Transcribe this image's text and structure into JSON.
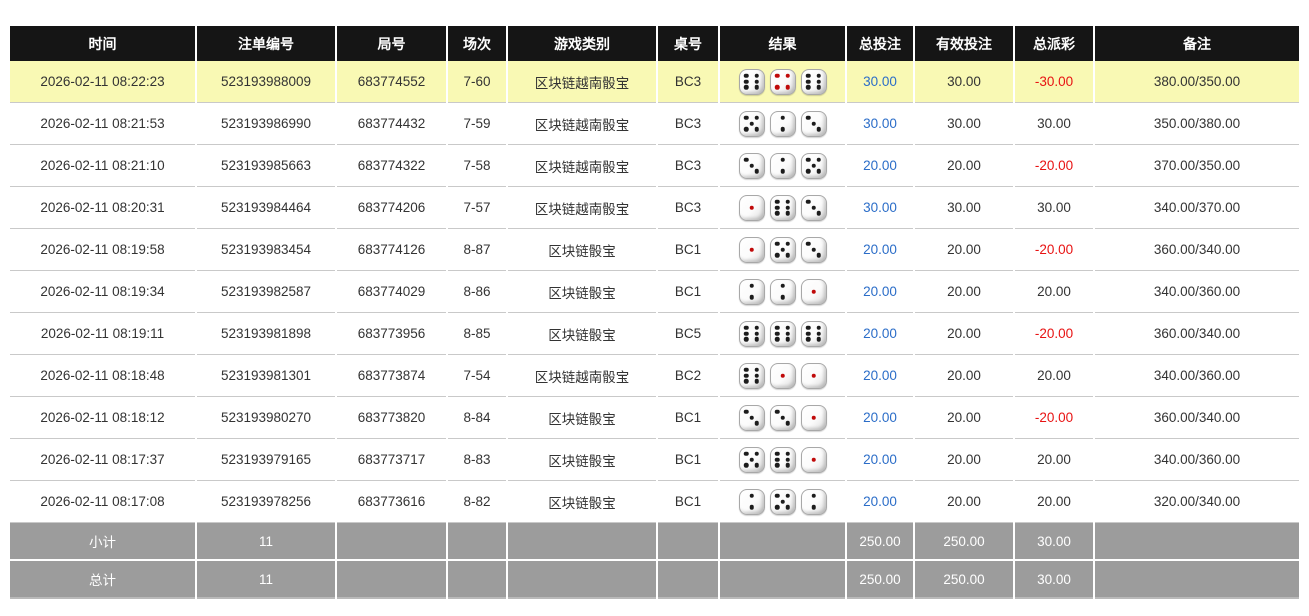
{
  "colors": {
    "header_bg": "#151515",
    "highlight_row_bg": "#f9f9b4",
    "total_bet_text": "#2b6dc8",
    "negative_payout_text": "#e81313",
    "footer_bg": "#9c9c9c",
    "die_pip_black": "#1c1c1c",
    "die_pip_red": "#c00a0a"
  },
  "table": {
    "columns": [
      "时间",
      "注单编号",
      "局号",
      "场次",
      "游戏类别",
      "桌号",
      "结果",
      "总投注",
      "有效投注",
      "总派彩",
      "备注"
    ],
    "rows": [
      {
        "highlighted": true,
        "time": "2026-02-11 08:22:23",
        "bet_id": "523193988009",
        "round_id": "683774552",
        "session": "7-60",
        "game": "区块链越南骰宝",
        "table_no": "BC3",
        "dice": [
          6,
          4,
          6
        ],
        "total_bet": "30.00",
        "valid_bet": "30.00",
        "payout": "-30.00",
        "remark": "380.00/350.00"
      },
      {
        "highlighted": false,
        "time": "2026-02-11 08:21:53",
        "bet_id": "523193986990",
        "round_id": "683774432",
        "session": "7-59",
        "game": "区块链越南骰宝",
        "table_no": "BC3",
        "dice": [
          5,
          2,
          3
        ],
        "total_bet": "30.00",
        "valid_bet": "30.00",
        "payout": "30.00",
        "remark": "350.00/380.00"
      },
      {
        "highlighted": false,
        "time": "2026-02-11 08:21:10",
        "bet_id": "523193985663",
        "round_id": "683774322",
        "session": "7-58",
        "game": "区块链越南骰宝",
        "table_no": "BC3",
        "dice": [
          3,
          2,
          5
        ],
        "total_bet": "20.00",
        "valid_bet": "20.00",
        "payout": "-20.00",
        "remark": "370.00/350.00"
      },
      {
        "highlighted": false,
        "time": "2026-02-11 08:20:31",
        "bet_id": "523193984464",
        "round_id": "683774206",
        "session": "7-57",
        "game": "区块链越南骰宝",
        "table_no": "BC3",
        "dice": [
          1,
          6,
          3
        ],
        "total_bet": "30.00",
        "valid_bet": "30.00",
        "payout": "30.00",
        "remark": "340.00/370.00"
      },
      {
        "highlighted": false,
        "time": "2026-02-11 08:19:58",
        "bet_id": "523193983454",
        "round_id": "683774126",
        "session": "8-87",
        "game": "区块链骰宝",
        "table_no": "BC1",
        "dice": [
          1,
          5,
          3
        ],
        "total_bet": "20.00",
        "valid_bet": "20.00",
        "payout": "-20.00",
        "remark": "360.00/340.00"
      },
      {
        "highlighted": false,
        "time": "2026-02-11 08:19:34",
        "bet_id": "523193982587",
        "round_id": "683774029",
        "session": "8-86",
        "game": "区块链骰宝",
        "table_no": "BC1",
        "dice": [
          2,
          2,
          1
        ],
        "total_bet": "20.00",
        "valid_bet": "20.00",
        "payout": "20.00",
        "remark": "340.00/360.00"
      },
      {
        "highlighted": false,
        "time": "2026-02-11 08:19:11",
        "bet_id": "523193981898",
        "round_id": "683773956",
        "session": "8-85",
        "game": "区块链骰宝",
        "table_no": "BC5",
        "dice": [
          6,
          6,
          6
        ],
        "total_bet": "20.00",
        "valid_bet": "20.00",
        "payout": "-20.00",
        "remark": "360.00/340.00"
      },
      {
        "highlighted": false,
        "time": "2026-02-11 08:18:48",
        "bet_id": "523193981301",
        "round_id": "683773874",
        "session": "7-54",
        "game": "区块链越南骰宝",
        "table_no": "BC2",
        "dice": [
          6,
          1,
          1
        ],
        "total_bet": "20.00",
        "valid_bet": "20.00",
        "payout": "20.00",
        "remark": "340.00/360.00"
      },
      {
        "highlighted": false,
        "time": "2026-02-11 08:18:12",
        "bet_id": "523193980270",
        "round_id": "683773820",
        "session": "8-84",
        "game": "区块链骰宝",
        "table_no": "BC1",
        "dice": [
          3,
          3,
          1
        ],
        "total_bet": "20.00",
        "valid_bet": "20.00",
        "payout": "-20.00",
        "remark": "360.00/340.00"
      },
      {
        "highlighted": false,
        "time": "2026-02-11 08:17:37",
        "bet_id": "523193979165",
        "round_id": "683773717",
        "session": "8-83",
        "game": "区块链骰宝",
        "table_no": "BC1",
        "dice": [
          5,
          6,
          1
        ],
        "total_bet": "20.00",
        "valid_bet": "20.00",
        "payout": "20.00",
        "remark": "340.00/360.00"
      },
      {
        "highlighted": false,
        "time": "2026-02-11 08:17:08",
        "bet_id": "523193978256",
        "round_id": "683773616",
        "session": "8-82",
        "game": "区块链骰宝",
        "table_no": "BC1",
        "dice": [
          2,
          5,
          2
        ],
        "total_bet": "20.00",
        "valid_bet": "20.00",
        "payout": "20.00",
        "remark": "320.00/340.00"
      }
    ],
    "footer_rows": [
      {
        "label": "小计",
        "count": "11",
        "total_bet": "250.00",
        "valid_bet": "250.00",
        "payout": "30.00"
      },
      {
        "label": "总计",
        "count": "11",
        "total_bet": "250.00",
        "valid_bet": "250.00",
        "payout": "30.00"
      }
    ]
  }
}
